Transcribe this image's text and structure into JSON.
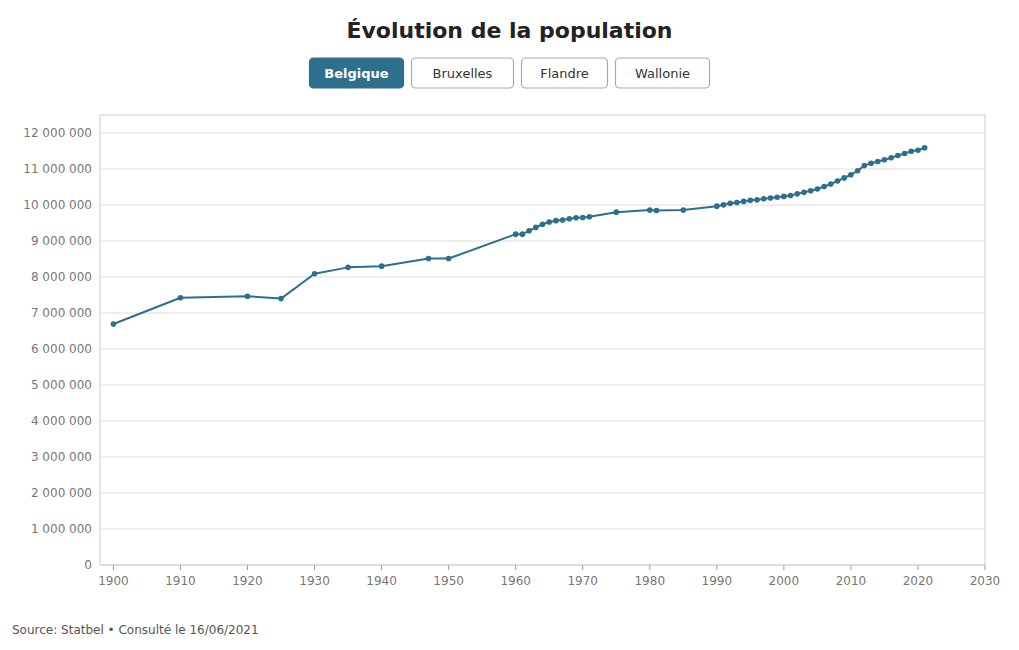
{
  "chart_data": {
    "type": "line",
    "title": "Évolution de la population",
    "annotations": [
      "Belgique",
      "Bruxelles",
      "Flandre",
      "Wallonie"
    ],
    "source": "Source: Statbel • Consulté le 16/06/2021",
    "color": "#2e6f8e",
    "marker": "circle",
    "line_style": "solid",
    "grid": true,
    "x": [
      1900,
      1910,
      1920,
      1925,
      1930,
      1935,
      1940,
      1947,
      1950,
      1960,
      1961,
      1962,
      1963,
      1964,
      1965,
      1966,
      1967,
      1968,
      1969,
      1970,
      1971,
      1975,
      1980,
      1981,
      1985,
      1990,
      1991,
      1992,
      1993,
      1994,
      1995,
      1996,
      1997,
      1998,
      1999,
      2000,
      2001,
      2002,
      2003,
      2004,
      2005,
      2006,
      2007,
      2008,
      2009,
      2010,
      2011,
      2012,
      2013,
      2014,
      2015,
      2016,
      2017,
      2018,
      2019,
      2020,
      2021
    ],
    "values": [
      6693548,
      7423784,
      7465782,
      7400322,
      8092004,
      8267522,
      8301246,
      8512195,
      8512195,
      9189741,
      9189741,
      9284000,
      9378000,
      9465000,
      9528000,
      9565000,
      9582000,
      9619000,
      9646000,
      9650944,
      9672648,
      9801461,
      9858695,
      9848647,
      9858895,
      9967379,
      10004082,
      10045944,
      10068319,
      10100631,
      10130574,
      10143047,
      10170226,
      10192264,
      10213752,
      10239085,
      10263414,
      10309725,
      10355844,
      10396421,
      10445852,
      10511382,
      10584534,
      10666866,
      10753080,
      10839905,
      10951266,
      11094850,
      11161642,
      11209044,
      11258434,
      11311117,
      11376070,
      11431406,
      11492641,
      11522440,
      11590000
    ],
    "xlim": [
      1898,
      2030
    ],
    "ylim": [
      0,
      12500000
    ],
    "xticks": [
      1900,
      1910,
      1920,
      1930,
      1940,
      1950,
      1960,
      1970,
      1980,
      1990,
      2000,
      2010,
      2020,
      2030
    ],
    "yticks": [
      0,
      {
        "value": 1000000,
        "label": "1 000 000"
      },
      {
        "value": 2000000,
        "label": "2 000 000"
      },
      {
        "value": 3000000,
        "label": "3 000 000"
      },
      {
        "value": 4000000,
        "label": "4 000 000"
      },
      {
        "value": 5000000,
        "label": "5 000 000"
      },
      {
        "value": 6000000,
        "label": "6 000 000"
      },
      {
        "value": 7000000,
        "label": "7 000 000"
      },
      {
        "value": 8000000,
        "label": "8 000 000"
      },
      {
        "value": 9000000,
        "label": "9 000 000"
      },
      {
        "value": 10000000,
        "label": "10 000 000"
      },
      {
        "value": 11000000,
        "label": "11 000 000"
      },
      {
        "value": 12000000,
        "label": "12 000 000"
      }
    ]
  }
}
